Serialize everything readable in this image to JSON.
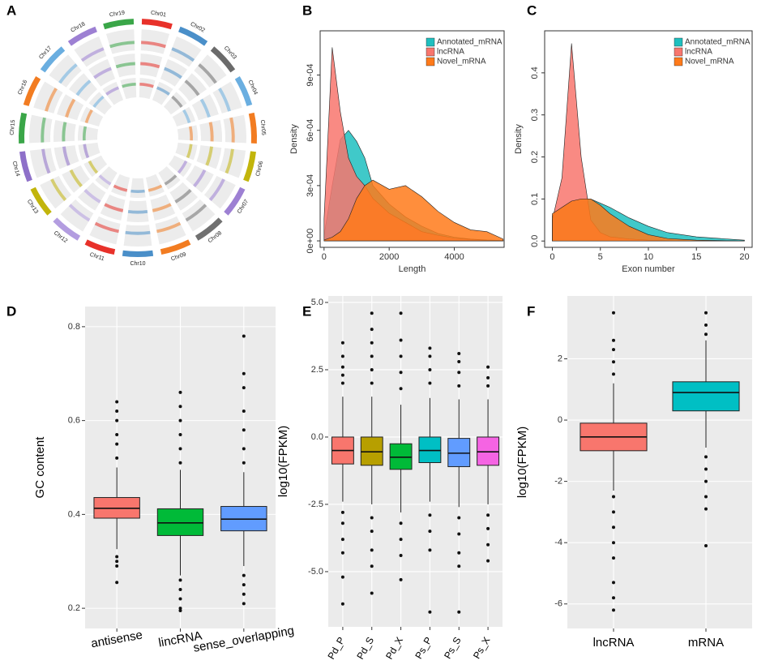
{
  "chart_data": [
    {
      "type": "circos",
      "panel": "A",
      "categories": [
        "Chr01",
        "Chr02",
        "Chr03",
        "Chr04",
        "Chr05",
        "Chr06",
        "Chr07",
        "Chr08",
        "Chr09",
        "Chr10",
        "Chr11",
        "Chr12",
        "Chr13",
        "Chr14",
        "Chr15",
        "Chr16",
        "Chr17",
        "Chr18",
        "Chr19"
      ],
      "colors": [
        "#e8312a",
        "#4a8fc9",
        "#6b6b6b",
        "#6aaee0",
        "#f27c21",
        "#c2b50c",
        "#9d80d3",
        "#707070",
        "#f27c21",
        "#4a8fc9",
        "#e8312a",
        "#b39de0",
        "#c2b50c",
        "#8e70c9",
        "#3aa648",
        "#f27c21",
        "#6aaee0",
        "#9d80d3",
        "#3aa648"
      ]
    },
    {
      "type": "density",
      "panel": "B",
      "xlabel": "Length",
      "ylabel": "Density",
      "x": [
        0,
        250,
        500,
        750,
        1000,
        1250,
        1500,
        2000,
        2500,
        3000,
        3500,
        4000,
        4500,
        5000,
        5500
      ],
      "series": [
        {
          "name": "Annotated_mRNA",
          "color": "#1fbfbf",
          "values": [
            3e-05,
            0.0003,
            0.00055,
            0.0006,
            0.00054,
            0.00045,
            0.0003,
            0.0002,
            0.00013,
            8e-05,
            4e-05,
            2e-05,
            1e-05,
            5e-06,
            2e-06
          ]
        },
        {
          "name": "lncRNA",
          "color": "#f8766d",
          "values": [
            0.00012,
            0.00105,
            0.0007,
            0.00045,
            0.00035,
            0.0003,
            0.00023,
            0.00015,
            0.0001,
            5e-05,
            3e-05,
            1.5e-05,
            8e-06,
            3e-06,
            1e-06
          ]
        },
        {
          "name": "Novel_mRNA",
          "color": "#ff7a1a",
          "values": [
            5e-06,
            2e-05,
            5e-05,
            0.00012,
            0.00023,
            0.0003,
            0.00033,
            0.00028,
            0.0003,
            0.00024,
            0.00016,
            0.0001,
            6e-05,
            5e-05,
            1e-05
          ]
        }
      ],
      "xlim": [
        -120,
        5530
      ],
      "ylim": [
        -3.5e-05,
        0.00114
      ],
      "xticks": [
        0,
        2000,
        4000
      ],
      "yticks": [
        {
          "value": 0,
          "label": "0e+00"
        },
        {
          "value": 0.0003,
          "label": "3e-04"
        },
        {
          "value": 0.0006,
          "label": "6e-04"
        },
        {
          "value": 0.0009,
          "label": "9e-04"
        }
      ],
      "legend": "top-right"
    },
    {
      "type": "density",
      "panel": "C",
      "xlabel": "Exon number",
      "ylabel": "Density",
      "x": [
        0,
        1,
        2,
        3,
        4,
        5,
        6,
        8,
        10,
        12,
        15,
        20
      ],
      "series": [
        {
          "name": "Annotated_mRNA",
          "color": "#1fbfbf",
          "values": [
            0.06,
            0.08,
            0.095,
            0.1,
            0.1,
            0.09,
            0.08,
            0.055,
            0.035,
            0.02,
            0.01,
            0.002
          ]
        },
        {
          "name": "lncRNA",
          "color": "#f8766d",
          "values": [
            0.05,
            0.15,
            0.47,
            0.2,
            0.05,
            0.02,
            0.01,
            0.005,
            0.002,
            0.001,
            0,
            0
          ]
        },
        {
          "name": "Novel_mRNA",
          "color": "#ff7a1a",
          "values": [
            0.065,
            0.08,
            0.095,
            0.1,
            0.1,
            0.085,
            0.065,
            0.035,
            0.015,
            0.006,
            0.002,
            0
          ]
        }
      ],
      "xlim": [
        -0.8,
        20.8
      ],
      "ylim": [
        -0.015,
        0.5
      ],
      "xticks": [
        0,
        5,
        10,
        15,
        20
      ],
      "yticks": [
        {
          "value": 0,
          "label": "0.0"
        },
        0.1,
        0.2,
        0.3,
        0.4
      ],
      "legend": "top-right"
    },
    {
      "type": "box",
      "panel": "D",
      "ylabel": "GC content",
      "grid": true,
      "categories": [
        "antisense",
        "lincRNA",
        "sense_overlapping"
      ],
      "colors": [
        "#f8766d",
        "#00ba38",
        "#619cff"
      ],
      "boxes": [
        {
          "whisker_low": 0.326,
          "q1": 0.392,
          "median": 0.413,
          "q3": 0.436,
          "whisker_high": 0.5,
          "outliers": [
            0.255,
            0.29,
            0.3,
            0.31,
            0.52,
            0.55,
            0.57,
            0.6,
            0.62,
            0.64
          ]
        },
        {
          "whisker_low": 0.27,
          "q1": 0.355,
          "median": 0.382,
          "q3": 0.412,
          "whisker_high": 0.495,
          "outliers": [
            0.195,
            0.2,
            0.22,
            0.24,
            0.26,
            0.51,
            0.54,
            0.57,
            0.6,
            0.63,
            0.66
          ]
        },
        {
          "whisker_low": 0.29,
          "q1": 0.365,
          "median": 0.39,
          "q3": 0.417,
          "whisker_high": 0.49,
          "outliers": [
            0.21,
            0.23,
            0.25,
            0.27,
            0.51,
            0.54,
            0.58,
            0.62,
            0.67,
            0.7,
            0.78
          ]
        }
      ],
      "ylim": [
        0.157,
        0.843
      ],
      "yticks": [
        0.2,
        0.4,
        0.6,
        0.8
      ]
    },
    {
      "type": "box",
      "panel": "E",
      "ylabel": "log10(FPKM)",
      "grid": true,
      "categories": [
        "Pd_P",
        "Pd_S",
        "Pd_X",
        "Ps_P",
        "Ps_S",
        "Ps_X"
      ],
      "colors": [
        "#f8766d",
        "#b79f00",
        "#00ba38",
        "#00bfc4",
        "#619cff",
        "#f564e3"
      ],
      "boxes": [
        {
          "whisker_low": -2.4,
          "q1": -1.0,
          "median": -0.5,
          "q3": 0.0,
          "whisker_high": 1.5,
          "outliers": [
            2.0,
            2.3,
            2.6,
            3.0,
            3.5,
            -2.8,
            -3.2,
            -3.8,
            -4.3,
            -5.2,
            -6.2
          ]
        },
        {
          "whisker_low": -2.5,
          "q1": -1.05,
          "median": -0.55,
          "q3": 0.0,
          "whisker_high": 1.5,
          "outliers": [
            2.0,
            2.5,
            3.0,
            3.5,
            4.0,
            4.6,
            -3.0,
            -3.5,
            -4.2,
            -4.8,
            -5.8
          ]
        },
        {
          "whisker_low": -2.8,
          "q1": -1.2,
          "median": -0.75,
          "q3": -0.25,
          "whisker_high": 1.2,
          "outliers": [
            1.8,
            2.4,
            3.0,
            3.6,
            4.6,
            -3.2,
            -3.8,
            -4.4,
            -5.3
          ]
        },
        {
          "whisker_low": -2.4,
          "q1": -0.95,
          "median": -0.5,
          "q3": 0.0,
          "whisker_high": 1.45,
          "outliers": [
            2.0,
            2.5,
            3.0,
            3.3,
            -2.9,
            -3.5,
            -4.2,
            -6.5
          ]
        },
        {
          "whisker_low": -2.6,
          "q1": -1.1,
          "median": -0.6,
          "q3": -0.05,
          "whisker_high": 1.4,
          "outliers": [
            1.9,
            2.4,
            2.8,
            3.1,
            -3.0,
            -3.6,
            -4.3,
            -4.8,
            -6.5
          ]
        },
        {
          "whisker_low": -2.5,
          "q1": -1.05,
          "median": -0.55,
          "q3": 0.0,
          "whisker_high": 1.4,
          "outliers": [
            1.9,
            2.2,
            2.6,
            -2.9,
            -3.4,
            -4.0,
            -4.6
          ]
        }
      ],
      "ylim": [
        -7.05,
        5.24
      ],
      "yticks": [
        {
          "value": -5,
          "label": "-5.0"
        },
        -2.5,
        {
          "value": 0,
          "label": "0.0"
        },
        2.5,
        {
          "value": 5,
          "label": "5.0"
        }
      ]
    },
    {
      "type": "box",
      "panel": "F",
      "ylabel": "log10(FPKM)",
      "grid": true,
      "categories": [
        "lncRNA",
        "mRNA"
      ],
      "colors": [
        "#f8766d",
        "#00bfc4"
      ],
      "boxes": [
        {
          "whisker_low": -2.3,
          "q1": -1.0,
          "median": -0.55,
          "q3": -0.1,
          "whisker_high": 1.2,
          "outliers": [
            1.5,
            1.9,
            2.3,
            2.6,
            3.5,
            -2.5,
            -3.0,
            -3.5,
            -4.0,
            -4.5,
            -5.3,
            -5.8,
            -6.2
          ]
        },
        {
          "whisker_low": -0.9,
          "q1": 0.3,
          "median": 0.9,
          "q3": 1.25,
          "whisker_high": 2.6,
          "outliers": [
            2.8,
            3.1,
            3.5,
            -1.2,
            -1.6,
            -2.0,
            -2.5,
            -2.9,
            -4.1
          ]
        }
      ],
      "ylim": [
        -6.8,
        4.05
      ],
      "yticks": [
        -6,
        -4,
        -2,
        0,
        2
      ]
    }
  ]
}
